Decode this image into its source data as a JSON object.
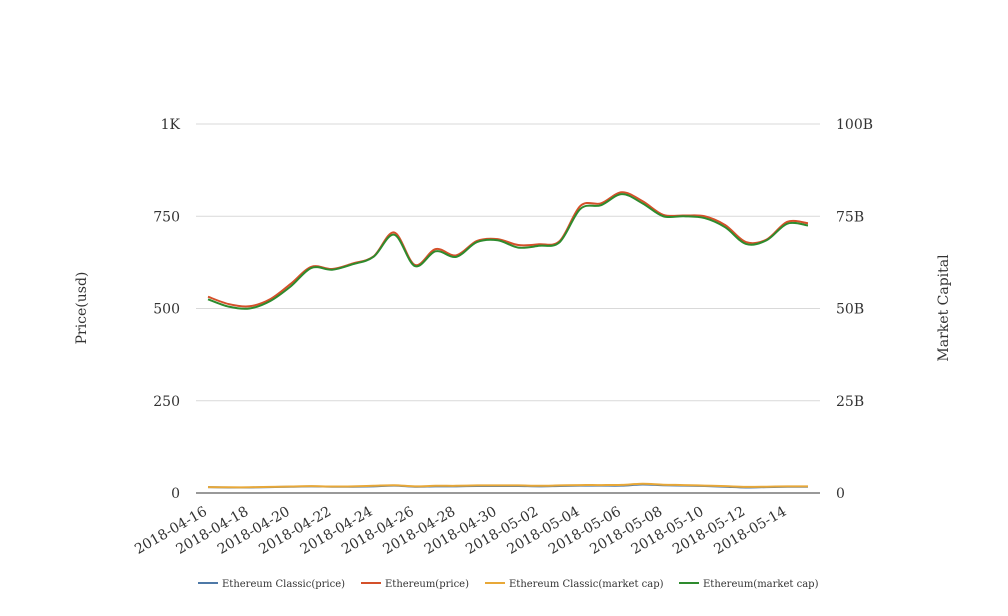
{
  "chart_data": {
    "type": "line",
    "x": [
      "2018-04-16",
      "2018-04-17",
      "2018-04-18",
      "2018-04-19",
      "2018-04-20",
      "2018-04-21",
      "2018-04-22",
      "2018-04-23",
      "2018-04-24",
      "2018-04-25",
      "2018-04-26",
      "2018-04-27",
      "2018-04-28",
      "2018-04-29",
      "2018-04-30",
      "2018-05-01",
      "2018-05-02",
      "2018-05-03",
      "2018-05-04",
      "2018-05-05",
      "2018-05-06",
      "2018-05-07",
      "2018-05-08",
      "2018-05-09",
      "2018-05-10",
      "2018-05-11",
      "2018-05-12",
      "2018-05-13",
      "2018-05-14",
      "2018-05-15"
    ],
    "x_tick_labels": [
      "2018-04-16",
      "2018-04-18",
      "2018-04-20",
      "2018-04-22",
      "2018-04-24",
      "2018-04-26",
      "2018-04-28",
      "2018-04-30",
      "2018-05-02",
      "2018-05-04",
      "2018-05-06",
      "2018-05-08",
      "2018-05-10",
      "2018-05-12",
      "2018-05-14"
    ],
    "y_left": {
      "label": "Price(usd)",
      "ticks": [
        "0",
        "250",
        "500",
        "750",
        "1K"
      ],
      "range": [
        0,
        1000
      ]
    },
    "y_right": {
      "label": "Market Capital",
      "ticks": [
        "0",
        "25B",
        "50B",
        "75B",
        "100B"
      ],
      "range": [
        0,
        100000000000
      ]
    },
    "series": [
      {
        "name": "Ethereum Classic(price)",
        "axis": "left",
        "color": "#4e79a7",
        "values": [
          16,
          15,
          15,
          16,
          17,
          18,
          17,
          17,
          18,
          20,
          17,
          18,
          18,
          19,
          19,
          19,
          18,
          19,
          20,
          20,
          20,
          23,
          21,
          20,
          19,
          17,
          15,
          16,
          17,
          17
        ]
      },
      {
        "name": "Ethereum(price)",
        "axis": "left",
        "color": "#d4502a",
        "values": [
          532,
          512,
          506,
          525,
          567,
          613,
          607,
          622,
          641,
          706,
          618,
          661,
          644,
          683,
          688,
          672,
          674,
          683,
          778,
          785,
          815,
          791,
          754,
          752,
          750,
          726,
          680,
          687,
          735,
          731
        ]
      },
      {
        "name": "Ethereum Classic(market cap)",
        "axis": "right",
        "color": "#e8a838",
        "values": [
          1600000000,
          1550000000,
          1550000000,
          1650000000,
          1750000000,
          1850000000,
          1750000000,
          1800000000,
          1950000000,
          2100000000,
          1800000000,
          1950000000,
          1950000000,
          2050000000,
          2050000000,
          2050000000,
          1950000000,
          2050000000,
          2150000000,
          2150000000,
          2200000000,
          2500000000,
          2250000000,
          2150000000,
          2000000000,
          1850000000,
          1650000000,
          1700000000,
          1800000000,
          1800000000
        ]
      },
      {
        "name": "Ethereum(market cap)",
        "axis": "right",
        "color": "#2e8b2e",
        "values": [
          52500000000,
          50500000000,
          50000000000,
          52000000000,
          56000000000,
          61000000000,
          60500000000,
          62000000000,
          64000000000,
          70000000000,
          61500000000,
          65500000000,
          64000000000,
          68000000000,
          68500000000,
          66500000000,
          67000000000,
          68000000000,
          77000000000,
          78000000000,
          81000000000,
          78500000000,
          75000000000,
          75000000000,
          74500000000,
          72000000000,
          67500000000,
          68500000000,
          73000000000,
          72500000000
        ]
      }
    ],
    "grid": true,
    "legend_position": "bottom"
  }
}
